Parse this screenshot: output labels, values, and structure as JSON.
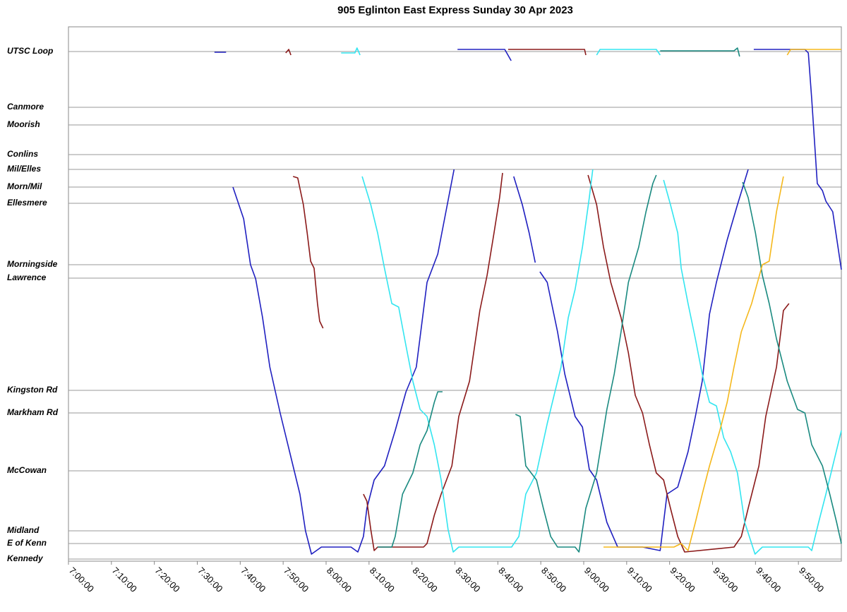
{
  "chart_data": {
    "type": "line",
    "title": "905 Eglinton East Express Sunday 30 Apr 2023",
    "xlim": [
      420,
      600
    ],
    "xticks": [
      {
        "value": 420,
        "label": "7:00:00"
      },
      {
        "value": 430,
        "label": "7:10:00"
      },
      {
        "value": 440,
        "label": "7:20:00"
      },
      {
        "value": 450,
        "label": "7:30:00"
      },
      {
        "value": 460,
        "label": "7:40:00"
      },
      {
        "value": 470,
        "label": "7:50:00"
      },
      {
        "value": 480,
        "label": "8:00:00"
      },
      {
        "value": 490,
        "label": "8:10:00"
      },
      {
        "value": 500,
        "label": "8:20:00"
      },
      {
        "value": 510,
        "label": "8:30:00"
      },
      {
        "value": 520,
        "label": "8:40:00"
      },
      {
        "value": 530,
        "label": "8:50:00"
      },
      {
        "value": 540,
        "label": "9:00:00"
      },
      {
        "value": 550,
        "label": "9:10:00"
      },
      {
        "value": 560,
        "label": "9:20:00"
      },
      {
        "value": 570,
        "label": "9:30:00"
      },
      {
        "value": 580,
        "label": "9:40:00"
      },
      {
        "value": 590,
        "label": "9:50:00"
      }
    ],
    "ylim": [
      0,
      75.7
    ],
    "yticks": [
      {
        "value": 72.2,
        "label": "UTSC Loop"
      },
      {
        "value": 64.3,
        "label": "Canmore"
      },
      {
        "value": 61.8,
        "label": "Moorish"
      },
      {
        "value": 57.6,
        "label": "Conlins"
      },
      {
        "value": 55.5,
        "label": "Mil/Elles"
      },
      {
        "value": 53,
        "label": "Morn/Mil"
      },
      {
        "value": 50.7,
        "label": "Ellesmere"
      },
      {
        "value": 42,
        "label": "Morningside"
      },
      {
        "value": 40.1,
        "label": "Lawrence"
      },
      {
        "value": 24.2,
        "label": "Kingston Rd"
      },
      {
        "value": 21,
        "label": "Markham Rd"
      },
      {
        "value": 12.8,
        "label": "McCowan"
      },
      {
        "value": 4.3,
        "label": "Midland"
      },
      {
        "value": 2.5,
        "label": "E of Kenn"
      },
      {
        "value": 0.3,
        "label": "Kennedy"
      }
    ],
    "grid": true,
    "series": [
      {
        "color": "#2020c0",
        "x": [
          454.0,
          456.7,
          null,
          458.3,
          460.8,
          462.4,
          463.6,
          465.2,
          466.9,
          469.3,
          471.5,
          473.9,
          475.2,
          476.6,
          478.9,
          485.8,
          487.4,
          488.7,
          489.5,
          491.2,
          493.6,
          496.1,
          498.6,
          501.0,
          503.5,
          506.0,
          509.8,
          null,
          510.6,
          521.6,
          523.1,
          null,
          523.7,
          525.7,
          527.3,
          528.7,
          null,
          529.8,
          531.5,
          533.9,
          535.6,
          538.0,
          539.7,
          541.3,
          543.0,
          545.4,
          547.9,
          553.7,
          557.8,
          559.4,
          561.9,
          564.3,
          566.0,
          567.6,
          569.3,
          570.9,
          573.4,
          575.8,
          578.3,
          null,
          579.6,
          591.5,
          592.3,
          593.1,
          594.4,
          595.6,
          596.4,
          598.0,
          600.0
        ],
        "values": [
          72.1,
          72.1,
          null,
          53.0,
          48.5,
          42.0,
          40.0,
          34.5,
          27.5,
          21.0,
          15.5,
          9.5,
          4.3,
          1.0,
          2.0,
          2.0,
          1.3,
          3.5,
          7.5,
          11.5,
          13.5,
          18.5,
          24.0,
          27.5,
          39.5,
          43.5,
          55.5,
          null,
          72.5,
          72.5,
          70.9,
          null,
          54.5,
          50.5,
          46.5,
          42.3,
          null,
          41.0,
          39.5,
          32.5,
          26.5,
          20.5,
          19.0,
          13.0,
          11.5,
          5.5,
          2.0,
          2.0,
          1.5,
          9.5,
          10.5,
          15.5,
          20.5,
          25.5,
          35.0,
          39.5,
          45.5,
          50.5,
          55.5,
          null,
          72.5,
          72.5,
          72.0,
          65.5,
          53.5,
          52.5,
          51.0,
          49.5,
          41.3
        ]
      },
      {
        "color": "#8b1a1a",
        "x": [
          470.6,
          471.3,
          471.8,
          null,
          472.3,
          473.4,
          474.7,
          475.6,
          476.4,
          477.2,
          478.0,
          478.5,
          479.3,
          null,
          488.7,
          489.5,
          490.4,
          491.2,
          492.0,
          502.7,
          503.5,
          505.2,
          506.8,
          509.3,
          510.9,
          513.4,
          515.8,
          517.5,
          519.1,
          520.4,
          521.1,
          null,
          522.4,
          540.2,
          540.5,
          null,
          541.0,
          543.0,
          544.6,
          546.3,
          548.7,
          550.4,
          552.0,
          553.7,
          555.3,
          556.9,
          558.6,
          560.2,
          561.9,
          563.5,
          575.0,
          576.7,
          578.3,
          580.8,
          582.4,
          584.9,
          586.5,
          587.8
        ],
        "values": [
          72.0,
          72.5,
          71.7,
          null,
          54.5,
          54.3,
          50.5,
          46.5,
          42.5,
          41.5,
          36.5,
          34.0,
          33.0,
          null,
          9.5,
          8.5,
          4.5,
          1.5,
          2.0,
          2.0,
          2.5,
          6.5,
          9.5,
          13.5,
          20.5,
          25.5,
          35.5,
          40.5,
          46.5,
          51.5,
          55.0,
          null,
          72.5,
          72.5,
          71.7,
          null,
          54.7,
          50.5,
          44.5,
          39.5,
          34.5,
          29.5,
          23.5,
          21.0,
          16.5,
          12.5,
          11.5,
          7.5,
          3.5,
          1.3,
          2.0,
          3.5,
          7.5,
          13.5,
          20.5,
          27.5,
          35.5,
          36.5
        ]
      },
      {
        "color": "#33e5f0",
        "x": [
          483.5,
          486.7,
          487.2,
          487.9,
          null,
          488.4,
          490.4,
          492.0,
          493.6,
          495.3,
          496.9,
          498.6,
          500.2,
          501.9,
          503.5,
          505.2,
          506.8,
          508.4,
          509.6,
          510.9,
          521.6,
          523.2,
          524.9,
          526.5,
          529.0,
          531.5,
          533.1,
          534.7,
          536.4,
          538.0,
          539.7,
          541.3,
          542.1,
          null,
          543.0,
          543.8,
          556.9,
          557.8,
          null,
          558.6,
          560.2,
          561.9,
          562.7,
          564.3,
          566.0,
          567.6,
          569.3,
          570.9,
          572.6,
          574.2,
          575.8,
          577.5,
          579.9,
          581.6,
          592.3,
          593.1,
          594.7,
          596.4,
          598.0,
          600.0
        ],
        "values": [
          72.0,
          72.0,
          72.7,
          71.7,
          null,
          54.5,
          50.5,
          46.5,
          41.5,
          36.5,
          36.0,
          30.5,
          25.5,
          21.5,
          20.5,
          16.5,
          11.5,
          4.5,
          1.3,
          2.0,
          2.0,
          2.0,
          3.5,
          9.5,
          12.5,
          19.5,
          23.5,
          27.5,
          34.5,
          38.5,
          44.5,
          51.5,
          55.5,
          null,
          71.7,
          72.5,
          72.5,
          71.7,
          null,
          54.0,
          50.5,
          46.5,
          41.5,
          36.5,
          31.5,
          26.5,
          22.5,
          22.0,
          17.5,
          15.5,
          12.5,
          5.5,
          1.0,
          2.0,
          2.0,
          1.5,
          5.5,
          9.5,
          13.5,
          18.5
        ]
      },
      {
        "color": "#1a8a80",
        "x": [
          492.0,
          495.3,
          496.1,
          497.8,
          500.2,
          501.9,
          503.5,
          505.2,
          506.0,
          507.1,
          null,
          524.1,
          525.2,
          526.5,
          529.0,
          530.6,
          532.3,
          533.9,
          538.0,
          538.9,
          540.5,
          543.0,
          545.4,
          547.1,
          548.7,
          550.4,
          552.8,
          554.5,
          556.1,
          556.9,
          null,
          557.8,
          575.0,
          575.8,
          576.3,
          null,
          577.0,
          578.3,
          580.0,
          581.6,
          583.2,
          584.9,
          587.4,
          589.8,
          591.5,
          593.1,
          595.6,
          597.3,
          598.9,
          600.0
        ],
        "values": [
          2.0,
          2.0,
          3.5,
          9.5,
          12.5,
          16.5,
          18.5,
          22.5,
          24.0,
          24.0,
          null,
          20.8,
          20.5,
          13.5,
          11.5,
          7.5,
          3.5,
          2.0,
          2.0,
          1.3,
          7.5,
          12.5,
          21.5,
          26.5,
          32.5,
          39.5,
          44.5,
          49.5,
          53.5,
          54.7,
          null,
          72.3,
          72.3,
          72.7,
          71.5,
          null,
          53.7,
          51.5,
          46.5,
          40.5,
          36.5,
          31.5,
          25.5,
          21.5,
          21.0,
          16.5,
          13.5,
          9.5,
          5.5,
          2.5
        ]
      },
      {
        "color": "#f5b81c",
        "x": [
          544.6,
          561.0,
          562.7,
          564.3,
          566.0,
          567.6,
          569.3,
          571.7,
          573.4,
          575.0,
          576.7,
          579.1,
          581.6,
          583.2,
          584.9,
          586.5,
          null,
          587.4,
          588.2,
          600.0
        ],
        "values": [
          2.0,
          2.0,
          2.5,
          1.5,
          5.5,
          9.5,
          13.5,
          18.5,
          22.5,
          27.5,
          32.5,
          36.5,
          42.0,
          42.5,
          49.5,
          54.5,
          null,
          71.7,
          72.5,
          72.5
        ]
      }
    ]
  }
}
